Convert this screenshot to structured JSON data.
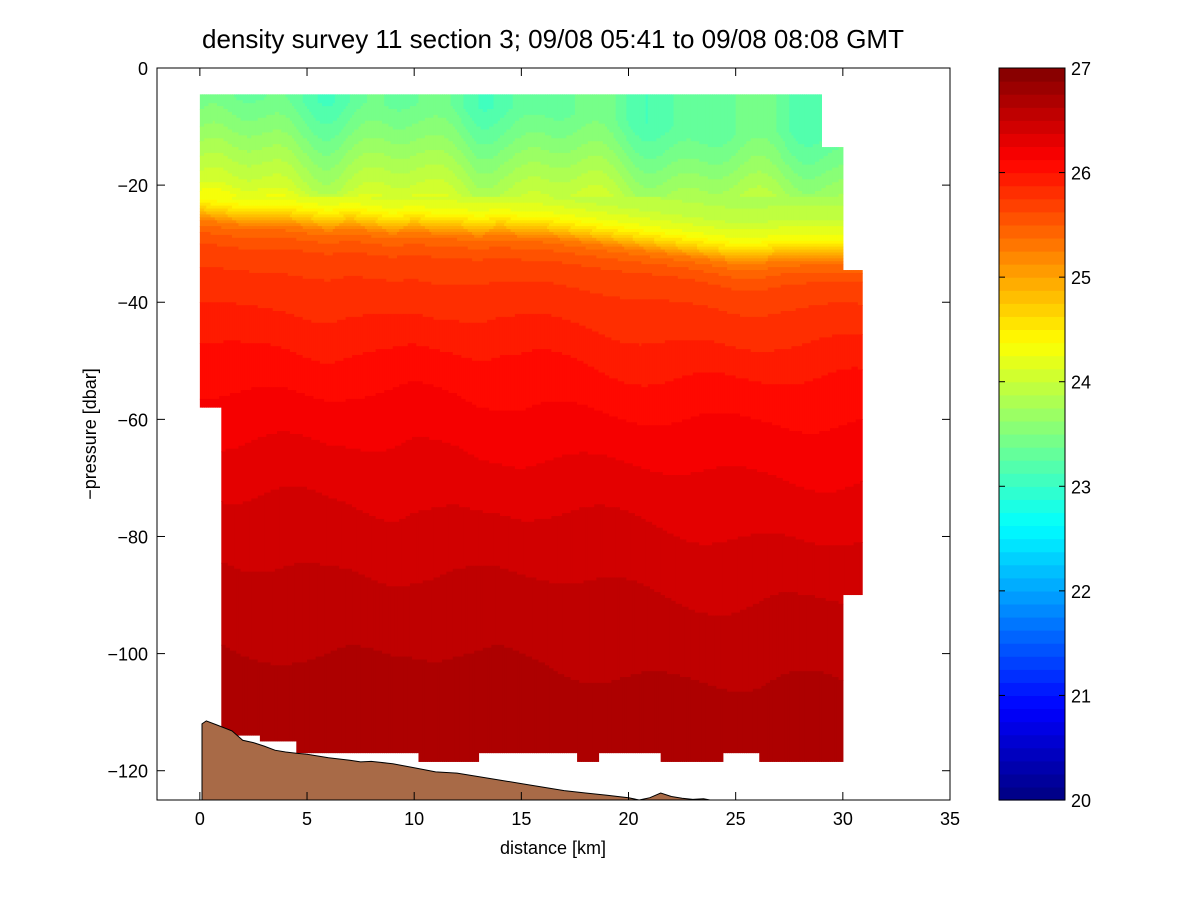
{
  "chart_data": {
    "type": "heatmap",
    "title": "density survey 11 section 3; 09/08 05:41 to 09/08 08:08 GMT",
    "xlabel": "distance [km]",
    "ylabel": "−pressure [dbar]",
    "xlim": [
      -2,
      35
    ],
    "ylim": [
      -125,
      0
    ],
    "xticks": [
      0,
      5,
      10,
      15,
      20,
      25,
      30,
      35
    ],
    "yticks": [
      0,
      -20,
      -40,
      -60,
      -80,
      -100,
      -120
    ],
    "ytick_labels": [
      "0",
      "−20",
      "−40",
      "−60",
      "−80",
      "−100",
      "−120"
    ],
    "colorbar": {
      "clim": [
        20,
        27
      ],
      "ticks": [
        20,
        21,
        22,
        23,
        24,
        25,
        26,
        27
      ],
      "colormap": "jet",
      "levels": 56
    },
    "grid": false,
    "x_km": [
      0,
      1,
      2,
      3,
      4,
      5,
      6,
      7,
      8,
      9,
      10,
      11,
      12,
      13,
      14,
      15,
      16,
      17,
      18,
      19,
      20,
      21,
      22,
      23,
      24,
      25,
      26,
      27,
      28,
      29,
      30,
      31
    ],
    "pycnocline_depth_dbar": [
      -24,
      -24.5,
      -25,
      -25,
      -25,
      -25.5,
      -26,
      -25.5,
      -26,
      -26.5,
      -26,
      -26.5,
      -26.5,
      -27,
      -26.5,
      -27,
      -27,
      -27.5,
      -28,
      -28.5,
      -29,
      -29.5,
      -30,
      -30.5,
      -31,
      -31.5,
      -31.5,
      -31,
      -31,
      -31,
      -31,
      -31
    ],
    "density_profile": {
      "depth_dbar": [
        -5,
        -10,
        -15,
        -20,
        -23,
        -25,
        -27,
        -30,
        -35,
        -40,
        -50,
        -60,
        -70,
        -80,
        -90,
        -100,
        -110,
        -118
      ],
      "sigma": [
        23.3,
        23.5,
        23.75,
        24.0,
        24.3,
        24.7,
        25.3,
        25.6,
        25.75,
        25.85,
        26.05,
        26.2,
        26.33,
        26.45,
        26.55,
        26.63,
        26.7,
        26.75
      ]
    },
    "data_mask": {
      "surface_top_dbar": -4.5,
      "columns": [
        {
          "x": [
            0,
            1
          ],
          "top": -4.5,
          "bottom": -58
        },
        {
          "x": [
            1,
            2.8
          ],
          "top": -4.5,
          "bottom": -114
        },
        {
          "x": [
            2.8,
            4.5
          ],
          "top": -4.5,
          "bottom": -115
        },
        {
          "x": [
            4.5,
            10.2
          ],
          "top": -4.5,
          "bottom": -117
        },
        {
          "x": [
            10.2,
            13
          ],
          "top": -4.5,
          "bottom": -118.5
        },
        {
          "x": [
            13,
            17.6
          ],
          "top": -4.5,
          "bottom": -117
        },
        {
          "x": [
            17.6,
            18.6
          ],
          "top": -4.5,
          "bottom": -118.5
        },
        {
          "x": [
            18.6,
            21.5
          ],
          "top": -4.5,
          "bottom": -117
        },
        {
          "x": [
            21.5,
            24.4
          ],
          "top": -4.5,
          "bottom": -118.5
        },
        {
          "x": [
            24.4,
            26.1
          ],
          "top": -4.5,
          "bottom": -117
        },
        {
          "x": [
            26.1,
            29
          ],
          "top": -4.5,
          "bottom": -118.5
        },
        {
          "x": [
            29,
            30
          ],
          "top": -13.5,
          "bottom": -118.5
        },
        {
          "x": [
            30,
            30.9
          ],
          "top": -34.5,
          "bottom": -90
        }
      ]
    },
    "bathymetry": {
      "color": "#a86a47",
      "x": [
        0.1,
        0.3,
        0.8,
        1.5,
        2,
        2.5,
        3,
        3.5,
        4,
        4.5,
        5,
        6,
        7,
        7.5,
        8,
        9,
        10,
        11,
        12,
        13,
        14,
        15,
        16,
        17,
        18,
        19,
        20,
        20.5,
        21,
        21.5,
        22,
        22.5,
        23,
        23.5,
        23.8
      ],
      "y": [
        -112,
        -111.5,
        -112.2,
        -113.2,
        -114.8,
        -115.2,
        -115.8,
        -116.5,
        -116.8,
        -117,
        -117.2,
        -117.8,
        -118.2,
        -118.5,
        -118.4,
        -118.8,
        -119.5,
        -120.2,
        -120.4,
        -121,
        -121.6,
        -122.2,
        -122.8,
        -123.4,
        -123.8,
        -124.2,
        -124.6,
        -125,
        -124.6,
        -123.8,
        -124.4,
        -124.7,
        -124.9,
        -124.8,
        -125
      ]
    }
  }
}
